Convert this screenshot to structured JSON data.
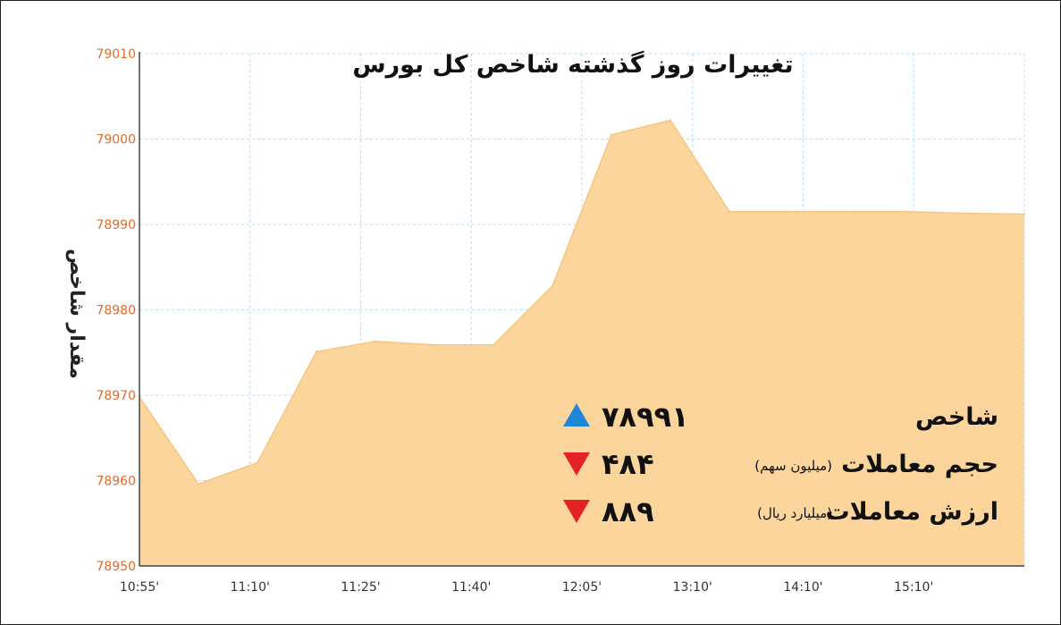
{
  "chart_data": {
    "type": "area",
    "title": "تغییرات روز گذشته شاخص کل بورس",
    "ylabel": "مقدار شاخص",
    "ylim": [
      78950,
      79010
    ],
    "yticks": [
      "79010",
      "79000",
      "78990",
      "78980",
      "78970",
      "78960",
      "78950"
    ],
    "ytick_values": [
      79010,
      79000,
      78990,
      78980,
      78970,
      78960,
      78950
    ],
    "xticks": [
      "10:55'",
      "11:10'",
      "11:25'",
      "11:40'",
      "12:05'",
      "13:10'",
      "14:10'",
      "15:10'"
    ],
    "grid": true,
    "series": [
      {
        "values": [
          78969.8,
          78959.6,
          78962.1,
          78975.1,
          78976.3,
          78975.9,
          78975.9,
          78982.8,
          79000.5,
          79002.2,
          78991.5,
          78991.5,
          78991.5,
          78991.5,
          78991.3,
          78991.2
        ]
      }
    ],
    "colors": {
      "fill": "#fbd59c",
      "stroke": "#f3c783",
      "grid": "#b9dcf2",
      "ytick": "#e36a2a"
    }
  },
  "stats": [
    {
      "label": "شاخص",
      "unit": "",
      "value": "۷۸۹۹۱",
      "direction": "up",
      "color": "#1e88d6"
    },
    {
      "label": "حجم معاملات",
      "unit": "(میلیون سهم)",
      "value": "۴۸۴",
      "direction": "down",
      "color": "#e32323"
    },
    {
      "label": "ارزش معاملات",
      "unit": "(میلیارد ریال)",
      "value": "۸۸۹",
      "direction": "down",
      "color": "#e32323"
    }
  ]
}
